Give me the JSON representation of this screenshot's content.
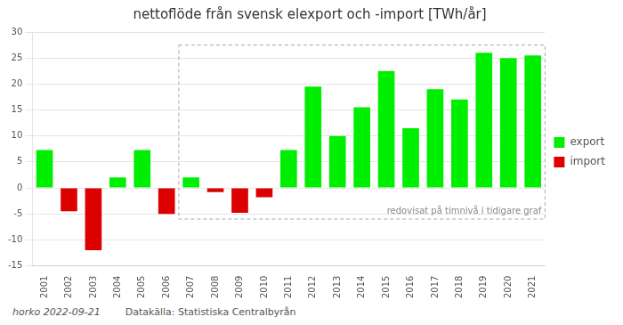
{
  "chart_data": {
    "type": "bar",
    "title": "nettoflöde från svensk elexport och -import [TWh/år]",
    "categories": [
      2001,
      2002,
      2003,
      2004,
      2005,
      2006,
      2007,
      2008,
      2009,
      2010,
      2011,
      2012,
      2013,
      2014,
      2015,
      2016,
      2017,
      2018,
      2019,
      2020,
      2021
    ],
    "series": [
      {
        "name": "export",
        "color": "#00EE00",
        "values": [
          7.3,
          null,
          null,
          2.0,
          7.3,
          null,
          2.0,
          null,
          null,
          null,
          7.3,
          19.5,
          10.0,
          15.5,
          22.5,
          11.5,
          19.0,
          17.0,
          26.0,
          25.0,
          25.5
        ]
      },
      {
        "name": "import",
        "color": "#DD0000",
        "values": [
          null,
          -4.5,
          -12.0,
          null,
          null,
          -5.0,
          null,
          -0.8,
          -4.8,
          -1.8,
          null,
          null,
          null,
          null,
          null,
          null,
          null,
          null,
          null,
          null,
          null
        ]
      }
    ],
    "ylim": [
      -15,
      30
    ],
    "yticks": [
      -15,
      -10,
      -5,
      0,
      5,
      10,
      15,
      20,
      25,
      30
    ],
    "grid": true,
    "legend": "right",
    "annotations": [
      {
        "text": "redovisat på timnivå i tidigare graf",
        "x_start": 2007,
        "x_end": 2021,
        "y_start": -6.0,
        "y_end": 27.5
      }
    ],
    "footer": [
      "horko 2022-09-21",
      "Datakälla: Statistiska Centralbyrån"
    ]
  }
}
